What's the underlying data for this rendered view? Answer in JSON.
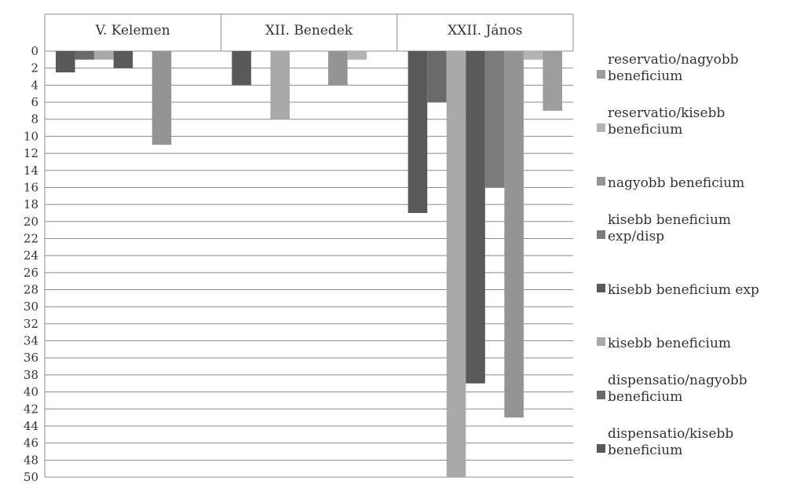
{
  "chart_data": {
    "type": "bar",
    "orientation": "vertical",
    "y_axis_inverted": true,
    "categories": [
      "V. Kelemen",
      "XII. Benedek",
      "XXII. János"
    ],
    "ylim": [
      0,
      50
    ],
    "y_ticks": [
      "0",
      "2",
      "4",
      "6",
      "8",
      "10",
      "12",
      "14",
      "16",
      "18",
      "20",
      "22",
      "24",
      "26",
      "28",
      "30",
      "32",
      "34",
      "36",
      "38",
      "40",
      "42",
      "44",
      "46",
      "48",
      "50"
    ],
    "grid": true,
    "legend_position": "right",
    "series": [
      {
        "name": "dispensatio/kisebb beneficium",
        "color": "#595959",
        "values": [
          2.5,
          4,
          19
        ]
      },
      {
        "name": "dispensatio/nagyobb beneficium",
        "color": "#6a6a6a",
        "values": [
          1,
          0,
          6
        ]
      },
      {
        "name": "kisebb beneficium",
        "color": "#a9a9a9",
        "values": [
          1,
          8,
          50
        ]
      },
      {
        "name": "kisebb beneficium exp",
        "color": "#5a5a5a",
        "values": [
          2,
          0,
          39
        ]
      },
      {
        "name": "kisebb beneficium exp/disp",
        "color": "#7b7b7b",
        "values": [
          0,
          0,
          16
        ]
      },
      {
        "name": "nagyobb beneficium",
        "color": "#949494",
        "values": [
          11,
          4,
          43
        ]
      },
      {
        "name": "reservatio/kisebb beneficium",
        "color": "#b3b3b3",
        "values": [
          0,
          1,
          1
        ]
      },
      {
        "name": "reservatio/nagyobb beneficium",
        "color": "#9d9d9d",
        "values": [
          0,
          0,
          7
        ]
      }
    ],
    "legend_entries": [
      {
        "text": "reservatio/nagyobb\nbeneficium",
        "color": "#9d9d9d"
      },
      {
        "text": "reservatio/kisebb\nbeneficium",
        "color": "#b3b3b3"
      },
      {
        "text": "nagyobb beneficium",
        "color": "#949494"
      },
      {
        "text": "kisebb beneficium\nexp/disp",
        "color": "#7b7b7b"
      },
      {
        "text": "kisebb beneficium exp",
        "color": "#5a5a5a"
      },
      {
        "text": "kisebb beneficium",
        "color": "#a9a9a9"
      },
      {
        "text": "dispensatio/nagyobb\nbeneficium",
        "color": "#6a6a6a"
      },
      {
        "text": "dispensatio/kisebb\nbeneficium",
        "color": "#595959"
      }
    ]
  }
}
